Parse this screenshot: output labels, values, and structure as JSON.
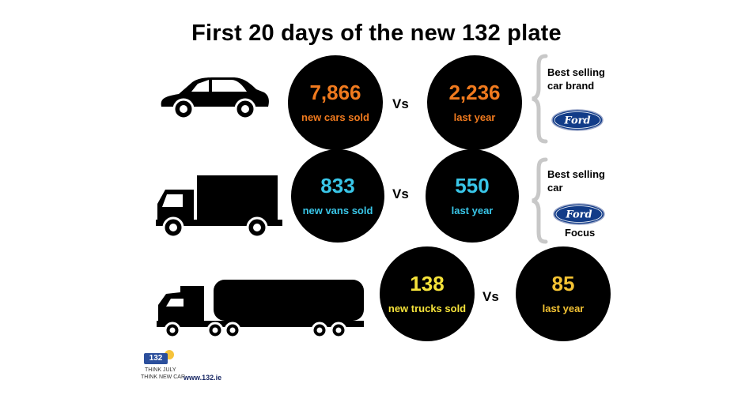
{
  "title": "First 20 days of the new 132 plate",
  "rows": [
    {
      "id": "cars",
      "value": "7,866",
      "label": "new cars sold",
      "vs": "Vs",
      "last_value": "2,236",
      "last_label": "last year",
      "color": "#f07a1e",
      "last_color": "#f07a1e"
    },
    {
      "id": "vans",
      "value": "833",
      "label": "new vans sold",
      "vs": "Vs",
      "last_value": "550",
      "last_label": "last year",
      "color": "#39c6e8",
      "last_color": "#39c6e8"
    },
    {
      "id": "trucks",
      "value": "138",
      "label": "new trucks sold",
      "vs": "Vs",
      "last_value": "85",
      "last_label": "last year",
      "color": "#f5e23a",
      "last_color": "#f3c233"
    }
  ],
  "best_brand": {
    "line1": "Best selling",
    "line2": "car brand",
    "logo": "Ford"
  },
  "best_car": {
    "line1": "Best selling",
    "line2": "car",
    "logo": "Ford",
    "model": "Focus"
  },
  "footer": {
    "logo_text": "132",
    "tag1": "THINK JULY",
    "tag2": "THINK NEW CAR",
    "url": "www.132.ie"
  }
}
